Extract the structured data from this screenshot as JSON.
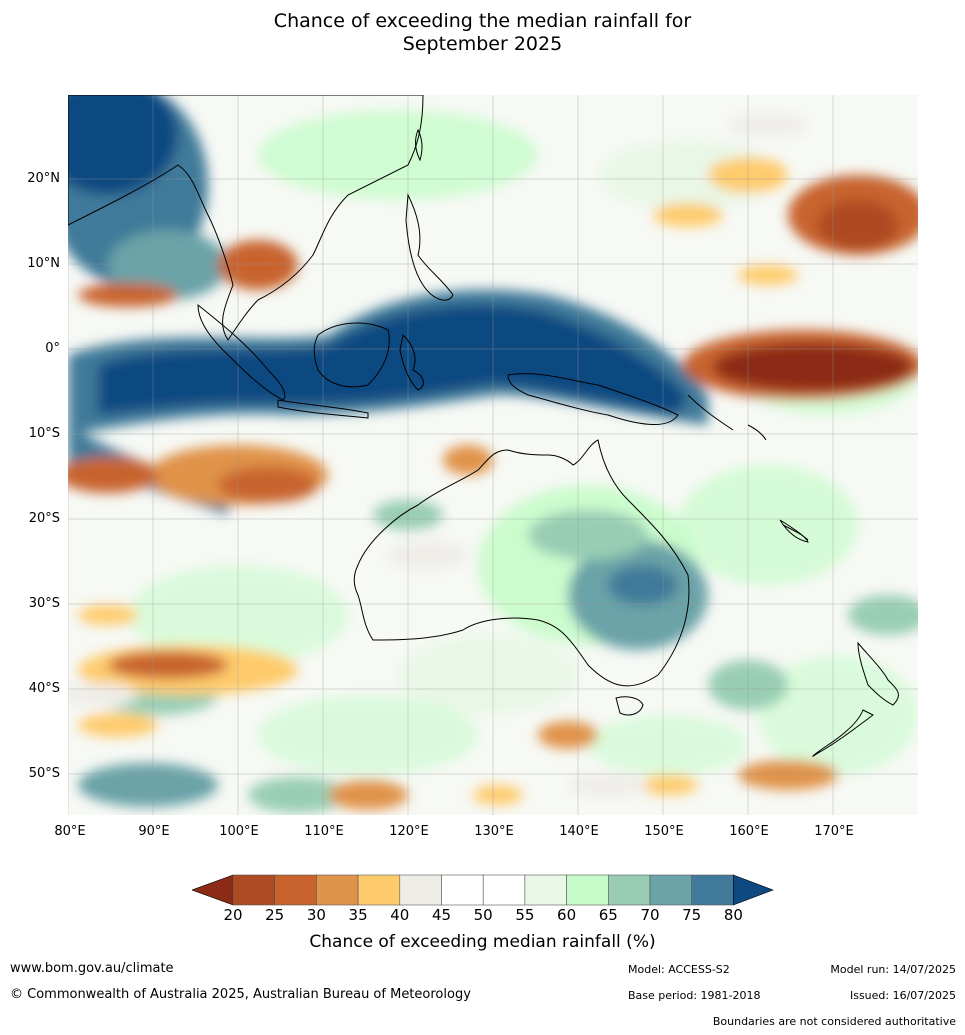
{
  "title_line1": "Chance of exceeding the median rainfall for",
  "title_line2": "September 2025",
  "lat_ticks": [
    "20°N",
    "10°N",
    "0°",
    "10°S",
    "20°S",
    "30°S",
    "40°S",
    "50°S"
  ],
  "lon_ticks": [
    "80°E",
    "90°E",
    "100°E",
    "110°E",
    "120°E",
    "130°E",
    "140°E",
    "150°E",
    "160°E",
    "170°E"
  ],
  "colorbar": {
    "ticks": [
      "20",
      "25",
      "30",
      "35",
      "40",
      "45",
      "50",
      "55",
      "60",
      "65",
      "70",
      "75",
      "80"
    ],
    "colors": [
      "#8b2b15",
      "#ae4a24",
      "#c8632d",
      "#e0934a",
      "#fecb6c",
      "#efede8",
      "#ffffff",
      "#ffffff",
      "#e9f7e7",
      "#c6fcc9",
      "#98cdb4",
      "#6aa3a8",
      "#417a9a",
      "#0e4981"
    ],
    "title": "Chance of exceeding median rainfall (%)"
  },
  "footer": {
    "url": "www.bom.gov.au/climate",
    "copyright": "© Commonwealth of Australia 2025, Australian Bureau of Meteorology",
    "model": "Model: ACCESS-S2",
    "base_period": "Base period: 1981-2018",
    "model_run": "Model run: 14/07/2025",
    "issued": "Issued: 16/07/2025",
    "disclaimer": "Boundaries are not considered authoritative"
  }
}
